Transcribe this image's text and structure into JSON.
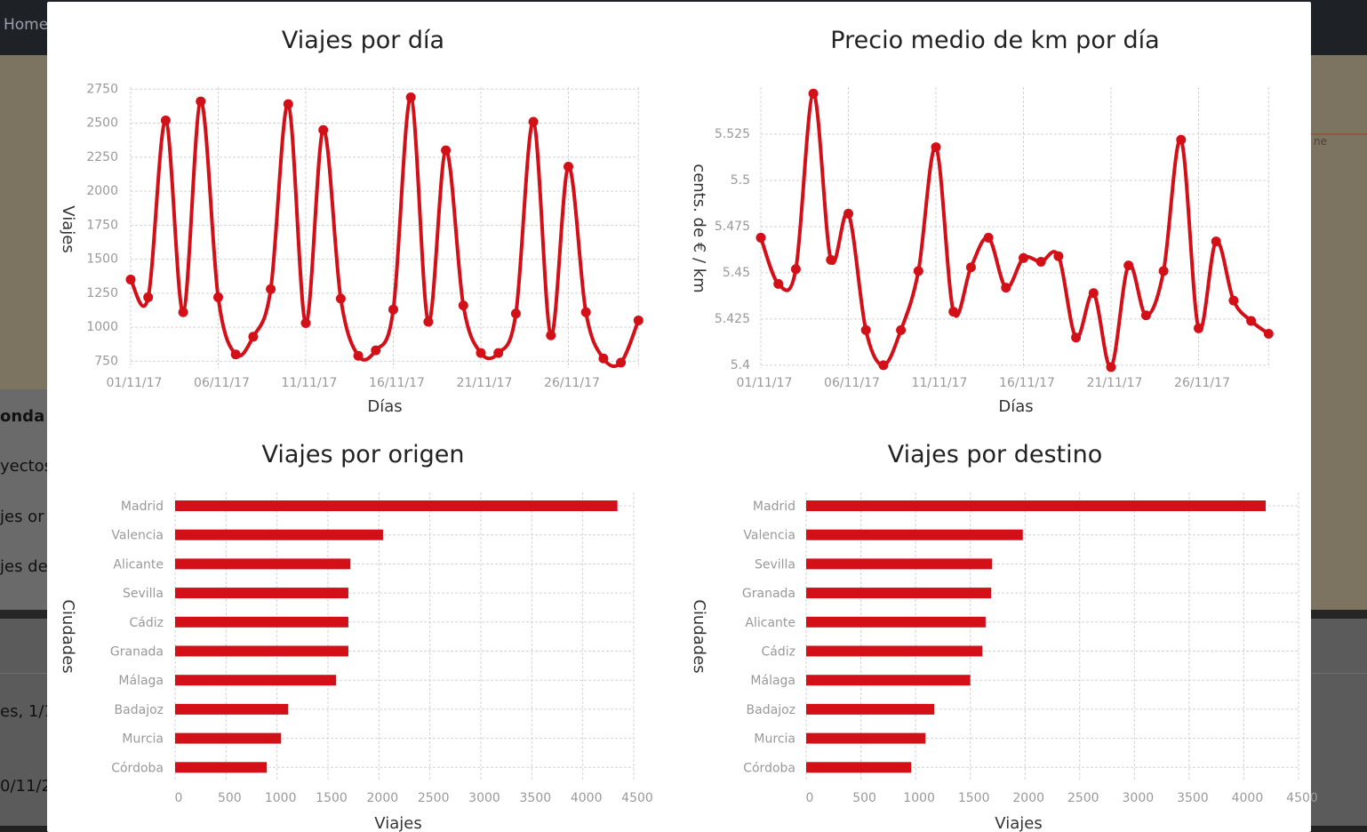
{
  "background": {
    "nav_home": "Home",
    "sidebar_title": "onda",
    "sidebar_lines": [
      "yectos",
      "jes or",
      "jes de"
    ],
    "lower_lines": [
      "es, 1/1",
      "0/11/2"
    ],
    "map_word": "ne"
  },
  "colors": {
    "series": "#d30f17",
    "grid": "#d3d3d3",
    "tick": "#999999",
    "title": "#222222"
  },
  "chart_data": [
    {
      "id": "trips_per_day",
      "type": "line",
      "title": "Viajes por día",
      "xlabel": "Días",
      "ylabel": "Viajes",
      "x": [
        "01/11/17",
        "02/11/17",
        "03/11/17",
        "04/11/17",
        "05/11/17",
        "06/11/17",
        "07/11/17",
        "08/11/17",
        "09/11/17",
        "10/11/17",
        "11/11/17",
        "12/11/17",
        "13/11/17",
        "14/11/17",
        "15/11/17",
        "16/11/17",
        "17/11/17",
        "18/11/17",
        "19/11/17",
        "20/11/17",
        "21/11/17",
        "22/11/17",
        "23/11/17",
        "24/11/17",
        "25/11/17",
        "26/11/17",
        "27/11/17",
        "28/11/17",
        "29/11/17",
        "30/11/17"
      ],
      "x_ticks": [
        "01/11/17",
        "06/11/17",
        "11/11/17",
        "16/11/17",
        "21/11/17",
        "26/11/17"
      ],
      "values": [
        1350,
        1220,
        2520,
        1110,
        2660,
        1220,
        800,
        930,
        1280,
        2640,
        1030,
        2450,
        1210,
        790,
        830,
        1130,
        2690,
        1040,
        2300,
        1160,
        810,
        810,
        1100,
        2510,
        940,
        2180,
        1110,
        770,
        740,
        1050
      ],
      "ylim": [
        700,
        2750
      ],
      "y_ticks": [
        "750",
        "1000",
        "1250",
        "1500",
        "1750",
        "2000",
        "2250",
        "2500",
        "2750"
      ],
      "grid": true
    },
    {
      "id": "price_per_km",
      "type": "line",
      "title": "Precio medio de km por día",
      "xlabel": "Días",
      "ylabel": "cents. de € / km",
      "x": [
        "01/11/17",
        "02/11/17",
        "03/11/17",
        "04/11/17",
        "05/11/17",
        "06/11/17",
        "07/11/17",
        "08/11/17",
        "09/11/17",
        "10/11/17",
        "11/11/17",
        "12/11/17",
        "13/11/17",
        "14/11/17",
        "15/11/17",
        "16/11/17",
        "17/11/17",
        "18/11/17",
        "19/11/17",
        "20/11/17",
        "21/11/17",
        "22/11/17",
        "23/11/17",
        "24/11/17",
        "25/11/17",
        "26/11/17",
        "27/11/17",
        "28/11/17",
        "29/11/17",
        "30/11/17"
      ],
      "x_ticks": [
        "01/11/17",
        "06/11/17",
        "11/11/17",
        "16/11/17",
        "21/11/17",
        "26/11/17"
      ],
      "values": [
        5.469,
        5.444,
        5.452,
        5.547,
        5.457,
        5.482,
        5.419,
        5.4,
        5.419,
        5.451,
        5.518,
        5.429,
        5.453,
        5.469,
        5.442,
        5.458,
        5.456,
        5.459,
        5.415,
        5.439,
        5.399,
        5.454,
        5.427,
        5.451,
        5.522,
        5.42,
        5.467,
        5.435,
        5.424,
        5.417
      ],
      "ylim": [
        5.396,
        5.55
      ],
      "y_ticks": [
        "5.4",
        "5.425",
        "5.45",
        "5.475",
        "5.5",
        "5.525"
      ],
      "grid": true
    },
    {
      "id": "trips_by_origin",
      "type": "bar",
      "orientation": "horizontal",
      "title": "Viajes por origen",
      "xlabel": "Viajes",
      "ylabel": "Ciudades",
      "categories": [
        "Madrid",
        "Valencia",
        "Alicante",
        "Sevilla",
        "Cádiz",
        "Granada",
        "Málaga",
        "Badajoz",
        "Murcia",
        "Córdoba"
      ],
      "values": [
        4340,
        2040,
        1720,
        1700,
        1700,
        1700,
        1580,
        1110,
        1040,
        900
      ],
      "xlim": [
        0,
        4500
      ],
      "x_ticks": [
        "0",
        "500",
        "1000",
        "1500",
        "2000",
        "2500",
        "3000",
        "3500",
        "4000",
        "4500"
      ],
      "grid": true
    },
    {
      "id": "trips_by_destination",
      "type": "bar",
      "orientation": "horizontal",
      "title": "Viajes por destino",
      "xlabel": "Viajes",
      "ylabel": "Ciudades",
      "categories": [
        "Madrid",
        "Valencia",
        "Sevilla",
        "Granada",
        "Alicante",
        "Cádiz",
        "Málaga",
        "Badajoz",
        "Murcia",
        "Córdoba"
      ],
      "values": [
        4200,
        1980,
        1700,
        1690,
        1640,
        1610,
        1500,
        1170,
        1090,
        960
      ],
      "xlim": [
        0,
        4500
      ],
      "x_ticks": [
        "0",
        "500",
        "1000",
        "1500",
        "2000",
        "2500",
        "3000",
        "3500",
        "4000",
        "4500"
      ],
      "grid": true
    }
  ]
}
